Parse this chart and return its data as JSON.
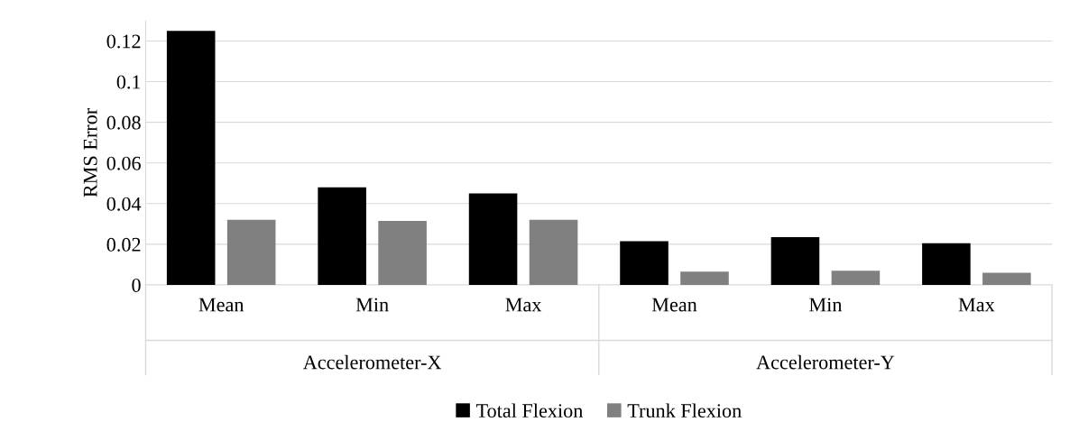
{
  "chart_data": {
    "type": "bar",
    "ylabel": "RMS Error",
    "categories": [
      "Mean",
      "Min",
      "Max",
      "Mean",
      "Min",
      "Max"
    ],
    "annotations": [
      "Accelerometer-X",
      "Accelerometer-Y"
    ],
    "series": [
      {
        "name": "Total Flexion",
        "color": "#000000",
        "values": [
          0.125,
          0.048,
          0.045,
          0.0215,
          0.0235,
          0.0205
        ]
      },
      {
        "name": "Trunk Flexion",
        "color": "#808080",
        "values": [
          0.032,
          0.0315,
          0.032,
          0.0065,
          0.007,
          0.006
        ]
      }
    ],
    "ylim": [
      0,
      0.13
    ],
    "yticks": [
      0,
      0.02,
      0.04,
      0.06,
      0.08,
      0.1,
      0.12
    ],
    "grid": "y",
    "legend": "bottom"
  }
}
